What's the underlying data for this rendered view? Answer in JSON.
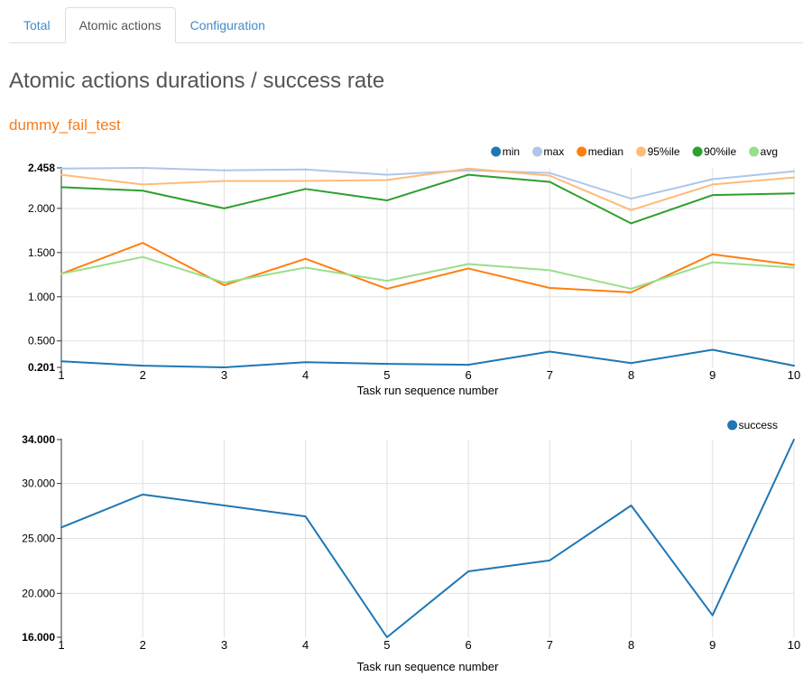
{
  "tabs": [
    {
      "id": "total",
      "label": "Total",
      "active": false
    },
    {
      "id": "atomic-actions",
      "label": "Atomic actions",
      "active": true
    },
    {
      "id": "configuration",
      "label": "Configuration",
      "active": false
    }
  ],
  "header": {
    "title": "Atomic actions durations / success rate",
    "scenario": "dummy_fail_test"
  },
  "colors": {
    "link": "#428bca",
    "active_tab_text": "#555555",
    "tab_border": "#dddddd",
    "title_text": "#555555",
    "scenario_text": "#f87c1b",
    "axis_line": "#333333",
    "grid_line": "#e0e0e0",
    "tick_text": "#000000",
    "legend_text": "#000000"
  },
  "chart_data": [
    {
      "type": "line",
      "title": "Atomic actions durations",
      "x": [
        1,
        2,
        3,
        4,
        5,
        6,
        7,
        8,
        9,
        10
      ],
      "xlabel": "Task run sequence number",
      "ylabel": "",
      "ylim": [
        0.201,
        2.458
      ],
      "grid": true,
      "legend_position": "top-right",
      "yticks": [
        {
          "value": 2.458,
          "label": "2.458",
          "bold": true,
          "grid": false
        },
        {
          "value": 2.0,
          "label": "2.000",
          "bold": false,
          "grid": true
        },
        {
          "value": 1.5,
          "label": "1.500",
          "bold": false,
          "grid": true
        },
        {
          "value": 1.0,
          "label": "1.000",
          "bold": false,
          "grid": true
        },
        {
          "value": 0.5,
          "label": "0.500",
          "bold": false,
          "grid": true
        },
        {
          "value": 0.201,
          "label": "0.201",
          "bold": true,
          "grid": false
        }
      ],
      "series": [
        {
          "name": "min",
          "color": "#1f77b4",
          "values": [
            0.27,
            0.22,
            0.201,
            0.26,
            0.24,
            0.23,
            0.38,
            0.25,
            0.4,
            0.22
          ]
        },
        {
          "name": "max",
          "color": "#aec7e8",
          "values": [
            2.45,
            2.458,
            2.43,
            2.44,
            2.38,
            2.43,
            2.4,
            2.11,
            2.33,
            2.42
          ]
        },
        {
          "name": "median",
          "color": "#ff7f0e",
          "values": [
            1.26,
            1.61,
            1.13,
            1.43,
            1.09,
            1.32,
            1.1,
            1.05,
            1.48,
            1.36
          ]
        },
        {
          "name": "95%ile",
          "color": "#ffbb78",
          "values": [
            2.38,
            2.27,
            2.31,
            2.31,
            2.32,
            2.45,
            2.37,
            1.98,
            2.27,
            2.35
          ]
        },
        {
          "name": "90%ile",
          "color": "#2ca02c",
          "values": [
            2.24,
            2.2,
            2.0,
            2.22,
            2.09,
            2.38,
            2.3,
            1.83,
            2.15,
            2.17
          ]
        },
        {
          "name": "avg",
          "color": "#98df8a",
          "values": [
            1.26,
            1.45,
            1.16,
            1.33,
            1.18,
            1.37,
            1.3,
            1.09,
            1.39,
            1.33
          ]
        }
      ]
    },
    {
      "type": "line",
      "title": "Success rate",
      "x": [
        1,
        2,
        3,
        4,
        5,
        6,
        7,
        8,
        9,
        10
      ],
      "xlabel": "Task run sequence number",
      "ylabel": "",
      "ylim": [
        16.0,
        34.0
      ],
      "grid": true,
      "legend_position": "top-right",
      "yticks": [
        {
          "value": 34.0,
          "label": "34.000",
          "bold": true,
          "grid": false
        },
        {
          "value": 30.0,
          "label": "30.000",
          "bold": false,
          "grid": true
        },
        {
          "value": 25.0,
          "label": "25.000",
          "bold": false,
          "grid": true
        },
        {
          "value": 20.0,
          "label": "20.000",
          "bold": false,
          "grid": true
        },
        {
          "value": 16.0,
          "label": "16.000",
          "bold": true,
          "grid": false
        }
      ],
      "series": [
        {
          "name": "success",
          "color": "#1f77b4",
          "values": [
            26,
            29,
            28,
            27,
            16,
            22,
            23,
            28,
            18,
            34
          ]
        }
      ]
    }
  ]
}
